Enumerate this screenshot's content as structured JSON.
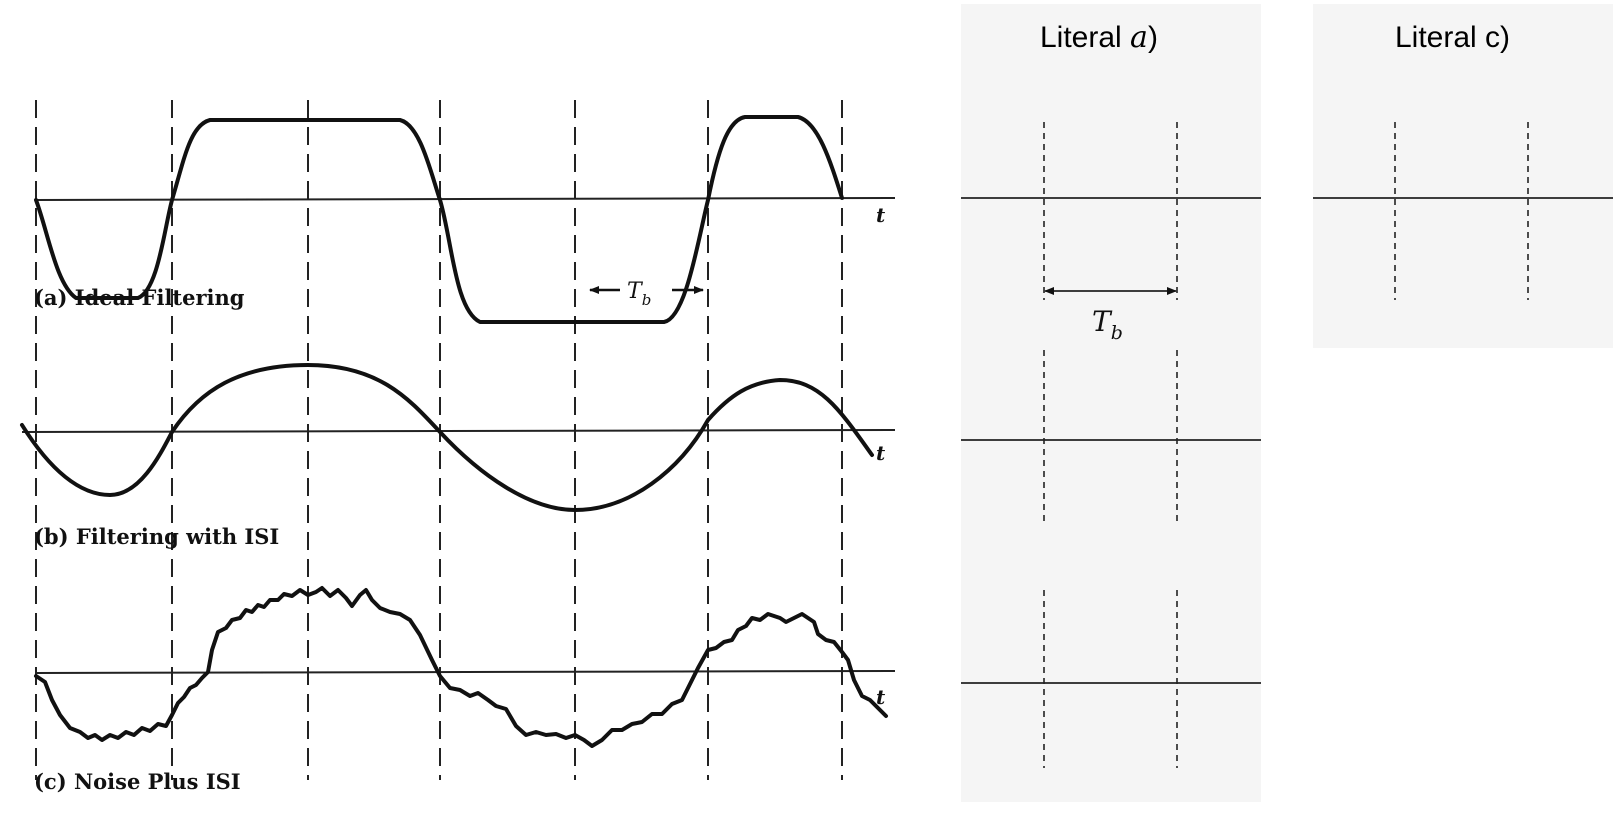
{
  "diagram": {
    "captions": {
      "a": "(a) Ideal Filtering",
      "b": "(b) Filtering with ISI",
      "c": "(c) Noise Plus ISI"
    },
    "axis_label": "t",
    "period_label": {
      "main": "T",
      "sub": "b"
    }
  },
  "panels": {
    "a": {
      "title_prefix": "Literal ",
      "title_var": "a",
      "title_suffix": ")"
    },
    "c": {
      "title": "Literal c)"
    },
    "period_label": {
      "main": "T",
      "sub": "b"
    }
  },
  "colors": {
    "panel_bg": "#f5f5f5",
    "ink": "#111111"
  }
}
